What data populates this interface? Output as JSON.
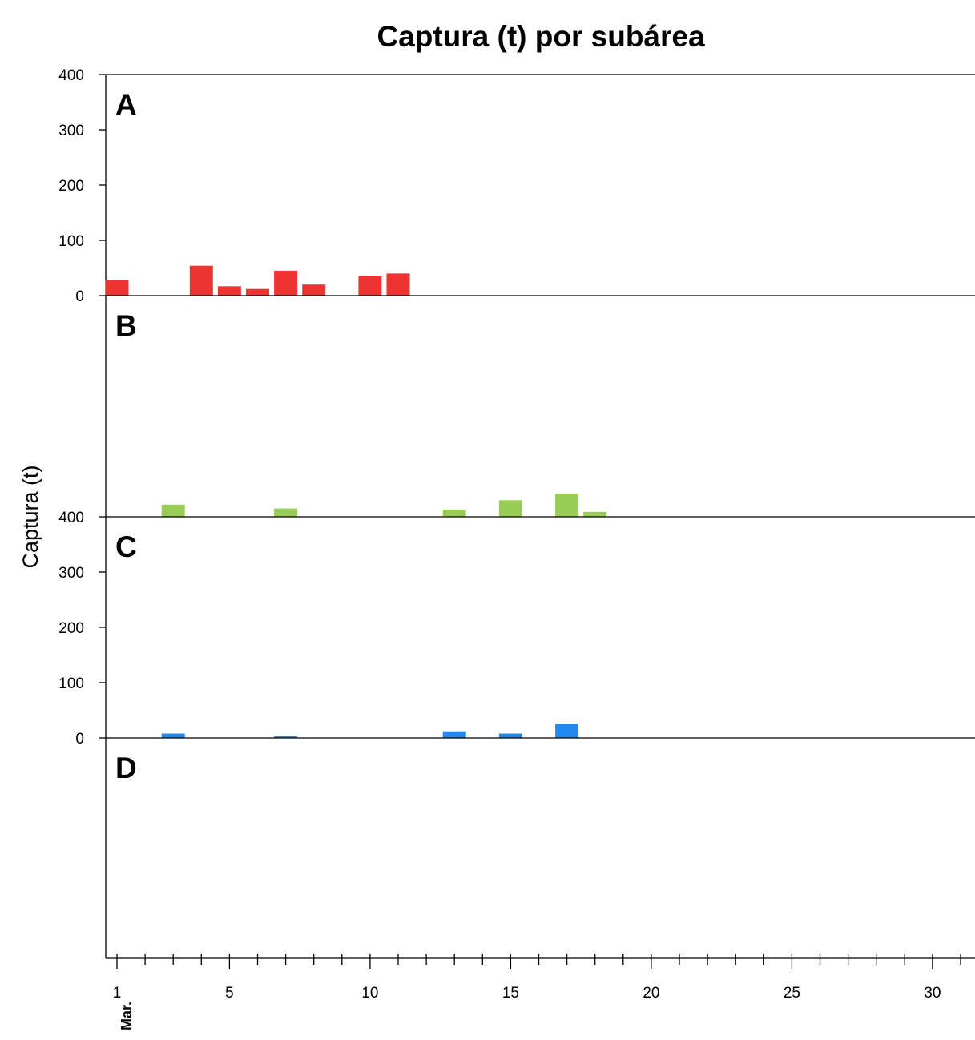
{
  "chart_data": {
    "type": "bar",
    "title": "Captura (t) por subárea",
    "ylabel": "Captura (t)",
    "x_month_label": "Mar.",
    "x_tick_labels": [
      "1",
      "5",
      "10",
      "15",
      "20",
      "25",
      "30"
    ],
    "x_tick_values": [
      1,
      5,
      10,
      15,
      20,
      25,
      30
    ],
    "xlim": [
      0.6,
      31.4
    ],
    "ylim": [
      0,
      400
    ],
    "y_tick_values": [
      0,
      100,
      200,
      300,
      400
    ],
    "y_tick_labels": [
      "0",
      "100",
      "200",
      "300",
      "400"
    ],
    "panels": [
      {
        "label": "A",
        "color": "#ee3333",
        "show_y_ticks": true,
        "bars": [
          {
            "day": 1,
            "value": 28
          },
          {
            "day": 4,
            "value": 54
          },
          {
            "day": 5,
            "value": 17
          },
          {
            "day": 6,
            "value": 12
          },
          {
            "day": 7,
            "value": 45
          },
          {
            "day": 8,
            "value": 20
          },
          {
            "day": 10,
            "value": 36
          },
          {
            "day": 11,
            "value": 40
          }
        ]
      },
      {
        "label": "B",
        "color": "#99cc55",
        "show_y_ticks": false,
        "bars": [
          {
            "day": 3,
            "value": 22
          },
          {
            "day": 7,
            "value": 15
          },
          {
            "day": 13,
            "value": 13
          },
          {
            "day": 15,
            "value": 30
          },
          {
            "day": 17,
            "value": 42
          },
          {
            "day": 18,
            "value": 9
          }
        ]
      },
      {
        "label": "C",
        "color": "#2288ee",
        "show_y_ticks": true,
        "bars": [
          {
            "day": 3,
            "value": 8
          },
          {
            "day": 7,
            "value": 3
          },
          {
            "day": 13,
            "value": 12
          },
          {
            "day": 15,
            "value": 8
          },
          {
            "day": 17,
            "value": 26
          }
        ]
      },
      {
        "label": "D",
        "color": "#2288ee",
        "show_y_ticks": false,
        "bars": []
      }
    ]
  }
}
